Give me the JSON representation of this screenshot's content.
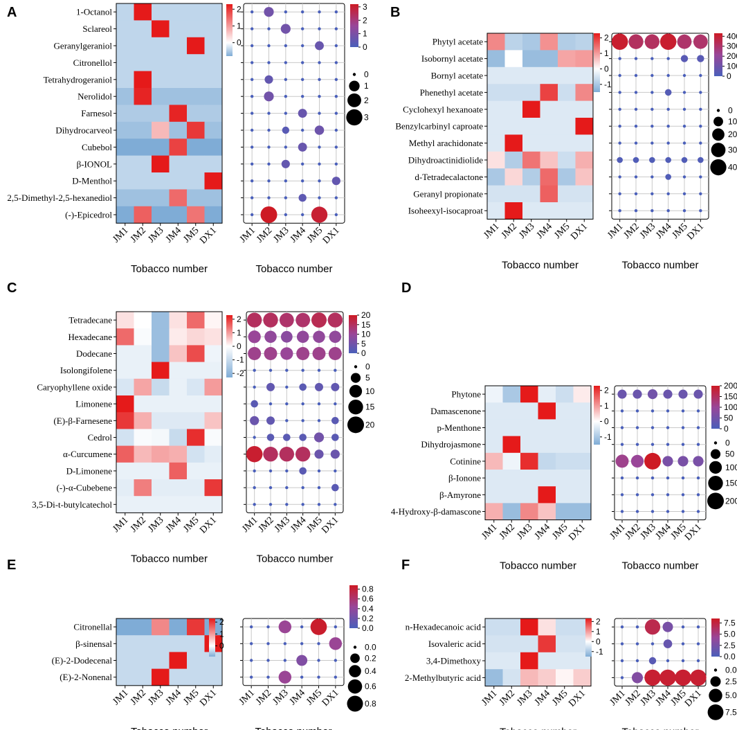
{
  "chart_data": [
    {
      "panel": "A",
      "type": "heatmap",
      "columns": [
        "JM1",
        "JM2",
        "JM3",
        "JM4",
        "JM5",
        "DX1"
      ],
      "rows": [
        "1-Octanol",
        "Sclareol",
        "Geranylgeraniol",
        "Citronellol",
        "Tetrahydrogeraniol",
        "Nerolidol",
        "Farnesol",
        "Dihydrocarveol",
        "Cubebol",
        "β-IONOL",
        "D-Menthol",
        "2,5-Dimethyl-2,5-hexanediol",
        "(-)-Epicedrol"
      ],
      "heatmap_values": [
        [
          -0.4,
          2.3,
          -0.4,
          -0.4,
          -0.4,
          -0.4
        ],
        [
          -0.4,
          -0.4,
          2.3,
          -0.4,
          -0.4,
          -0.4
        ],
        [
          -0.4,
          -0.4,
          -0.4,
          -0.4,
          2.3,
          -0.4
        ],
        [
          -0.4,
          -0.4,
          -0.4,
          -0.4,
          -0.4,
          -0.4
        ],
        [
          -0.4,
          2.3,
          -0.4,
          -0.4,
          -0.4,
          -0.4
        ],
        [
          -0.6,
          2.2,
          -0.6,
          -0.6,
          -0.6,
          -0.6
        ],
        [
          -0.5,
          -0.5,
          -0.5,
          2.2,
          -0.5,
          -0.5
        ],
        [
          -0.6,
          -0.6,
          0.7,
          -0.6,
          2.0,
          -0.6
        ],
        [
          -0.8,
          -0.8,
          -0.8,
          1.9,
          -0.8,
          -0.8
        ],
        [
          -0.4,
          -0.4,
          2.3,
          -0.4,
          -0.4,
          -0.4
        ],
        [
          -0.4,
          -0.4,
          -0.4,
          -0.4,
          -0.4,
          2.3
        ],
        [
          -0.6,
          -0.6,
          -0.6,
          1.5,
          -0.6,
          -0.6
        ],
        [
          -0.8,
          1.6,
          -0.8,
          -0.8,
          1.4,
          -0.8
        ]
      ],
      "heat_ticks": [
        "2",
        "1",
        "0"
      ],
      "heat_range": [
        -0.8,
        2.3
      ],
      "bubble_values": [
        [
          0,
          0.8,
          0,
          0,
          0,
          0
        ],
        [
          0,
          0,
          0.8,
          0,
          0,
          0
        ],
        [
          0,
          0,
          0,
          0,
          0.6,
          0
        ],
        [
          0,
          0,
          0,
          0,
          0,
          0
        ],
        [
          0,
          0.5,
          0,
          0,
          0,
          0
        ],
        [
          0,
          0.8,
          0,
          0,
          0,
          0
        ],
        [
          0,
          0,
          0,
          0.6,
          0,
          0
        ],
        [
          0,
          0,
          0.3,
          0,
          0.7,
          0
        ],
        [
          0,
          0,
          0,
          0.6,
          0,
          0
        ],
        [
          0,
          0,
          0.5,
          0,
          0,
          0
        ],
        [
          0,
          0,
          0,
          0,
          0,
          0.5
        ],
        [
          0,
          0,
          0,
          0.4,
          0,
          0
        ],
        [
          0,
          3.2,
          0,
          0,
          3.0,
          0
        ]
      ],
      "bubble_color_ticks": [
        "3",
        "2",
        "1",
        "0"
      ],
      "bubble_color_range": [
        0,
        3.2
      ],
      "size_legend": [
        "0",
        "1",
        "2",
        "3"
      ],
      "size_legend_values": [
        0,
        1,
        2,
        3
      ],
      "size_max": 3.2,
      "xlabel": "Tobacco number",
      "xlabel2": "Tobacco number"
    },
    {
      "panel": "B",
      "type": "heatmap",
      "columns": [
        "JM1",
        "JM2",
        "JM3",
        "JM4",
        "JM5",
        "DX1"
      ],
      "rows": [
        "Phytyl acetate",
        "Isobornyl acetate",
        "Bornyl acetate",
        "Phenethyl acetate",
        "Cyclohexyl hexanoate",
        "Benzylcarbinyl caproate",
        "Methyl arachidonate",
        "Dihydroactinidiolide",
        "d-Tetradecalactone",
        "Geranyl propionate",
        "Isoheexyl-isocaproat"
      ],
      "heatmap_values": [
        [
          1.2,
          -0.8,
          -1.0,
          1.1,
          -0.9,
          -0.8
        ],
        [
          -1.2,
          0.0,
          -1.2,
          -1.2,
          0.9,
          1.0
        ],
        [
          -0.4,
          -0.4,
          -0.4,
          -0.4,
          -0.4,
          -0.4
        ],
        [
          -0.6,
          -0.6,
          -0.6,
          1.9,
          -0.6,
          1.2
        ],
        [
          -0.4,
          -0.4,
          2.3,
          -0.4,
          -0.4,
          -0.4
        ],
        [
          -0.4,
          -0.4,
          -0.4,
          -0.4,
          -0.4,
          2.3
        ],
        [
          -0.4,
          2.3,
          -0.4,
          -0.4,
          -0.4,
          -0.4
        ],
        [
          0.3,
          -0.9,
          1.4,
          0.6,
          -0.6,
          0.8
        ],
        [
          -1.0,
          0.4,
          -0.9,
          1.5,
          -1.0,
          0.6
        ],
        [
          -0.5,
          -0.5,
          -0.5,
          1.6,
          -0.5,
          -0.5
        ],
        [
          -0.4,
          2.3,
          -0.4,
          -0.4,
          -0.4,
          -0.4
        ]
      ],
      "heat_ticks": [
        "2",
        "1",
        "0",
        "-1"
      ],
      "heat_range": [
        -1.5,
        2.3
      ],
      "bubble_values": [
        [
          410,
          320,
          320,
          410,
          300,
          300
        ],
        [
          0,
          0,
          0,
          0,
          40,
          40
        ],
        [
          0,
          0,
          0,
          0,
          0,
          0
        ],
        [
          0,
          0,
          0,
          30,
          0,
          0
        ],
        [
          0,
          0,
          0,
          0,
          0,
          0
        ],
        [
          0,
          0,
          0,
          0,
          0,
          0
        ],
        [
          0,
          0,
          0,
          0,
          0,
          0
        ],
        [
          20,
          20,
          20,
          20,
          20,
          20
        ],
        [
          0,
          0,
          0,
          20,
          0,
          0
        ],
        [
          0,
          0,
          0,
          0,
          0,
          0
        ],
        [
          0,
          0,
          0,
          0,
          0,
          0
        ]
      ],
      "bubble_color_ticks": [
        "400",
        "300",
        "200",
        "100",
        "0"
      ],
      "bubble_color_range": [
        0,
        430
      ],
      "size_legend": [
        "0",
        "100",
        "200",
        "300",
        "400"
      ],
      "size_legend_values": [
        0,
        100,
        200,
        300,
        400
      ],
      "size_max": 430,
      "xlabel": "Tobacco number",
      "xlabel2": "Tobacco number"
    },
    {
      "panel": "C",
      "type": "heatmap",
      "columns": [
        "JM1",
        "JM2",
        "JM3",
        "JM4",
        "JM5",
        "DX1"
      ],
      "rows": [
        "Tetradecane",
        "Hexadecane",
        "Dodecane",
        "Isolongifolene",
        "Caryophyllene oxide",
        "Limonene",
        "(E)-β-Farnesene",
        "Cedrol",
        "α-Curcumene",
        "D-Limonene",
        "(-)-α-Cubebene",
        "3,5-Di-t-butylcatechol"
      ],
      "heatmap_values": [
        [
          0.3,
          0.0,
          -1.8,
          0.3,
          1.5,
          0.1
        ],
        [
          1.5,
          -0.1,
          -1.8,
          0.2,
          0.4,
          0.3
        ],
        [
          -0.4,
          -0.4,
          -1.8,
          0.6,
          1.8,
          -0.3
        ],
        [
          -0.4,
          -0.4,
          2.3,
          -0.4,
          -0.4,
          -0.4
        ],
        [
          -0.7,
          0.9,
          -1.0,
          -0.4,
          -0.7,
          1.0
        ],
        [
          2.3,
          -0.4,
          -0.4,
          -0.4,
          -0.4,
          -0.4
        ],
        [
          2.0,
          0.8,
          -0.6,
          -0.6,
          -0.6,
          0.6
        ],
        [
          -0.8,
          -0.1,
          -0.2,
          -1.0,
          2.1,
          -0.1
        ],
        [
          1.6,
          0.7,
          0.9,
          0.8,
          -0.8,
          -0.5
        ],
        [
          -0.4,
          -0.4,
          -0.4,
          1.6,
          -0.4,
          -0.4
        ],
        [
          -0.5,
          1.3,
          -0.5,
          -0.5,
          -0.5,
          2.0
        ],
        [
          -0.4,
          -0.4,
          -0.4,
          -0.4,
          -0.4,
          -0.4
        ]
      ],
      "heat_ticks": [
        "2",
        "1",
        "0",
        "-1",
        "-2"
      ],
      "heat_range": [
        -2.3,
        2.3
      ],
      "bubble_values": [
        [
          15,
          15,
          14,
          14,
          16,
          15
        ],
        [
          10,
          9,
          8,
          9,
          9,
          9
        ],
        [
          11,
          11,
          10,
          11,
          11,
          11
        ],
        [
          0,
          0,
          0,
          0,
          0,
          0
        ],
        [
          0,
          3,
          0,
          2,
          3,
          3
        ],
        [
          2,
          0,
          0,
          0,
          0,
          0
        ],
        [
          4,
          3,
          0,
          0,
          0,
          2
        ],
        [
          0,
          2,
          2,
          2,
          5,
          2
        ],
        [
          19,
          15,
          15,
          15,
          4,
          4
        ],
        [
          0,
          0,
          0,
          2,
          0,
          0
        ],
        [
          0,
          0,
          0,
          0,
          0,
          2
        ],
        [
          0,
          0,
          0,
          0,
          0,
          0
        ]
      ],
      "bubble_color_ticks": [
        "20",
        "15",
        "10",
        "5",
        "0"
      ],
      "bubble_color_range": [
        0,
        20
      ],
      "size_legend": [
        "0",
        "5",
        "10",
        "15",
        "20"
      ],
      "size_legend_values": [
        0,
        5,
        10,
        15,
        20
      ],
      "size_max": 20,
      "xlabel": "Tobacco number",
      "xlabel2": "Tobacco number"
    },
    {
      "panel": "D",
      "type": "heatmap",
      "columns": [
        "JM1",
        "JM2",
        "JM3",
        "JM4",
        "JM5",
        "DX1"
      ],
      "rows": [
        "Phytone",
        "Damascenone",
        "p-Menthone",
        "Dihydrojasmone",
        "Cotinine",
        "β-Ionone",
        "β-Amyrone",
        "4-Hydroxy-β-damascone"
      ],
      "heatmap_values": [
        [
          -0.2,
          -1.0,
          2.3,
          -0.3,
          -0.6,
          0.2
        ],
        [
          -0.4,
          -0.4,
          -0.4,
          2.3,
          -0.4,
          -0.4
        ],
        [
          -0.4,
          -0.4,
          -0.4,
          -0.4,
          -0.4,
          -0.4
        ],
        [
          -0.4,
          2.3,
          -0.4,
          -0.4,
          -0.4,
          -0.4
        ],
        [
          0.7,
          -0.2,
          2.1,
          -0.7,
          -0.6,
          -0.6
        ],
        [
          -0.4,
          -0.4,
          -0.4,
          -0.4,
          -0.4,
          -0.4
        ],
        [
          -0.4,
          -0.4,
          -0.4,
          2.3,
          -0.4,
          -0.4
        ],
        [
          0.8,
          -1.2,
          1.2,
          0.6,
          -1.2,
          -1.2
        ]
      ],
      "heat_ticks": [
        "2",
        "1",
        "0",
        "-1"
      ],
      "heat_range": [
        -1.5,
        2.3
      ],
      "bubble_values": [
        [
          40,
          40,
          50,
          40,
          40,
          40
        ],
        [
          0,
          0,
          0,
          0,
          0,
          0
        ],
        [
          0,
          0,
          0,
          0,
          0,
          0
        ],
        [
          0,
          0,
          0,
          0,
          0,
          0
        ],
        [
          110,
          100,
          200,
          60,
          60,
          60
        ],
        [
          0,
          0,
          0,
          0,
          0,
          0
        ],
        [
          0,
          0,
          0,
          0,
          0,
          0
        ],
        [
          0,
          0,
          0,
          0,
          0,
          0
        ]
      ],
      "bubble_color_ticks": [
        "200",
        "150",
        "100",
        "50",
        "0"
      ],
      "bubble_color_range": [
        0,
        200
      ],
      "size_legend": [
        "0",
        "50",
        "100",
        "150",
        "200"
      ],
      "size_legend_values": [
        0,
        50,
        100,
        150,
        200
      ],
      "size_max": 200,
      "xlabel": "Tobacco number",
      "xlabel2": "Tobacco number"
    },
    {
      "panel": "E",
      "type": "heatmap",
      "columns": [
        "JM1",
        "JM2",
        "JM3",
        "JM4",
        "JM5",
        "DX1"
      ],
      "rows": [
        "Citronellal",
        "β-sinensal",
        "(E)-2-Dodecenal",
        "(E)-2-Nonenal"
      ],
      "heatmap_values": [
        [
          -0.9,
          -0.9,
          1.2,
          -0.9,
          2.0,
          -0.9
        ],
        [
          -0.4,
          -0.4,
          -0.4,
          -0.4,
          -0.4,
          2.3
        ],
        [
          -0.4,
          -0.4,
          -0.4,
          2.3,
          -0.4,
          -0.4
        ],
        [
          -0.4,
          -0.4,
          2.3,
          -0.4,
          -0.4,
          -0.4
        ]
      ],
      "heat_ticks": [
        "2",
        "1",
        "0"
      ],
      "heat_range": [
        -0.9,
        2.3
      ],
      "bubble_values": [
        [
          0,
          0,
          0.45,
          0,
          0.85,
          0
        ],
        [
          0,
          0,
          0,
          0,
          0,
          0.45
        ],
        [
          0,
          0,
          0,
          0.3,
          0,
          0
        ],
        [
          0,
          0,
          0.45,
          0,
          0,
          0
        ]
      ],
      "bubble_color_ticks": [
        "0.8",
        "0.6",
        "0.4",
        "0.2",
        "0.0"
      ],
      "bubble_color_range": [
        0,
        0.88
      ],
      "size_legend": [
        "0.0",
        "0.2",
        "0.4",
        "0.6",
        "0.8"
      ],
      "size_legend_values": [
        0,
        0.2,
        0.4,
        0.6,
        0.8
      ],
      "size_max": 0.88,
      "xlabel": "Tobacco number",
      "xlabel2": "Tobacco number"
    },
    {
      "panel": "F",
      "type": "heatmap",
      "columns": [
        "JM1",
        "JM2",
        "JM3",
        "JM4",
        "JM5",
        "DX1"
      ],
      "rows": [
        "n-Hexadecanoic acid",
        "Isovaleric acid",
        "3,4-Dimethoxy",
        "2-Methylbutyric acid"
      ],
      "heatmap_values": [
        [
          -0.6,
          -0.6,
          2.3,
          0.3,
          -0.6,
          -0.6
        ],
        [
          -0.5,
          -0.5,
          -0.5,
          2.0,
          -0.5,
          -0.5
        ],
        [
          -0.4,
          -0.4,
          2.3,
          -0.4,
          -0.4,
          -0.4
        ],
        [
          -1.2,
          -0.5,
          0.7,
          0.5,
          0.1,
          0.5
        ]
      ],
      "heat_ticks": [
        "2",
        "1",
        "0",
        "-1"
      ],
      "heat_range": [
        -1.5,
        2.3
      ],
      "bubble_values": [
        [
          0,
          0,
          7.0,
          2.5,
          0,
          0
        ],
        [
          0,
          0,
          0,
          1.5,
          0,
          0
        ],
        [
          0,
          0,
          0.8,
          0,
          0,
          0
        ],
        [
          0,
          3.0,
          8.0,
          8.0,
          8.0,
          8.0
        ]
      ],
      "bubble_color_ticks": [
        "7.5",
        "5.0",
        "2.5",
        "0.0"
      ],
      "bubble_color_range": [
        0,
        8.5
      ],
      "size_legend": [
        "0.0",
        "2.5",
        "5.0",
        "7.5"
      ],
      "size_legend_values": [
        0,
        2.5,
        5.0,
        7.5
      ],
      "size_max": 8.5,
      "xlabel": "Tobacco number",
      "xlabel2": "Tobacco number"
    }
  ]
}
